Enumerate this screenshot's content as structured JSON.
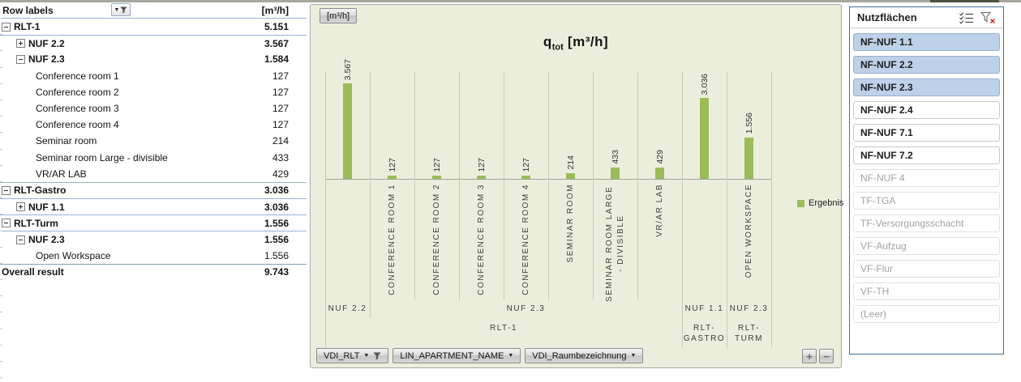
{
  "colors": {
    "bar_green": "#9bbc59",
    "chart_background": "#eceedd",
    "chart_border": "#a9a9a9",
    "table_border_blue": "#95b3d7",
    "slicer_border_blue": "#41719c",
    "slicer_selected_fill": "#bdd2e9",
    "disabled_text": "#a3a3a3"
  },
  "pivot_table": {
    "header": {
      "row_labels": "Row labels",
      "value_label": "[m³/h]"
    },
    "rows": [
      {
        "label": "RLT-1",
        "value": "5.151",
        "level": 0,
        "toggle": "minus",
        "bold": true,
        "sep": false,
        "total": false
      },
      {
        "label": "NUF 2.2",
        "value": "3.567",
        "level": 1,
        "toggle": "plus",
        "bold": true,
        "sep": true,
        "total": false
      },
      {
        "label": "NUF 2.3",
        "value": "1.584",
        "level": 1,
        "toggle": "minus",
        "bold": true,
        "sep": false,
        "total": false
      },
      {
        "label": "Conference room 1",
        "value": "127",
        "level": 2,
        "toggle": null,
        "bold": false,
        "sep": false,
        "total": false
      },
      {
        "label": "Conference room 2",
        "value": "127",
        "level": 2,
        "toggle": null,
        "bold": false,
        "sep": false,
        "total": false
      },
      {
        "label": "Conference room 3",
        "value": "127",
        "level": 2,
        "toggle": null,
        "bold": false,
        "sep": false,
        "total": false
      },
      {
        "label": "Conference room 4",
        "value": "127",
        "level": 2,
        "toggle": null,
        "bold": false,
        "sep": false,
        "total": false
      },
      {
        "label": "Seminar room",
        "value": "214",
        "level": 2,
        "toggle": null,
        "bold": false,
        "sep": false,
        "total": false
      },
      {
        "label": "Seminar room Large - divisible",
        "value": "433",
        "level": 2,
        "toggle": null,
        "bold": false,
        "sep": false,
        "total": false
      },
      {
        "label": "VR/AR LAB",
        "value": "429",
        "level": 2,
        "toggle": null,
        "bold": false,
        "sep": false,
        "total": false
      },
      {
        "label": "RLT-Gastro",
        "value": "3.036",
        "level": 0,
        "toggle": "minus",
        "bold": true,
        "sep": true,
        "total": false
      },
      {
        "label": "NUF 1.1",
        "value": "3.036",
        "level": 1,
        "toggle": "plus",
        "bold": true,
        "sep": true,
        "total": false
      },
      {
        "label": "RLT-Turm",
        "value": "1.556",
        "level": 0,
        "toggle": "minus",
        "bold": true,
        "sep": true,
        "total": false
      },
      {
        "label": "NUF 2.3",
        "value": "1.556",
        "level": 1,
        "toggle": "minus",
        "bold": true,
        "sep": true,
        "total": false
      },
      {
        "label": "Open Workspace",
        "value": "1.556",
        "level": 2,
        "toggle": null,
        "bold": false,
        "sep": false,
        "total": false
      },
      {
        "label": "Overall result",
        "value": "9.743",
        "level": 0,
        "toggle": null,
        "bold": true,
        "sep": false,
        "total": true
      }
    ]
  },
  "chart_data": {
    "type": "bar",
    "title": "q_tot [m³/h]",
    "title_parts": {
      "base": "q",
      "sub": "tot",
      "rest": " [m³/h]"
    },
    "series_name": "Ergebnis",
    "ylim": [
      0,
      4000
    ],
    "value_axis_visible": false,
    "bar_color": "#9bbc59",
    "columns": [
      {
        "room": "",
        "value": 3567,
        "label": "3.567"
      },
      {
        "room": "CONFERENCE ROOM 1",
        "value": 127,
        "label": "127"
      },
      {
        "room": "CONFERENCE ROOM 2",
        "value": 127,
        "label": "127"
      },
      {
        "room": "CONFERENCE ROOM 3",
        "value": 127,
        "label": "127"
      },
      {
        "room": "CONFERENCE ROOM 4",
        "value": 127,
        "label": "127"
      },
      {
        "room": "SEMINAR ROOM",
        "value": 214,
        "label": "214"
      },
      {
        "room": "SEMINAR ROOM LARGE - DIVISIBLE",
        "value": 433,
        "label": "433"
      },
      {
        "room": "VR/AR LAB",
        "value": 429,
        "label": "429"
      },
      {
        "room": "",
        "value": 3036,
        "label": "3.036"
      },
      {
        "room": "OPEN WORKSPACE",
        "value": 1556,
        "label": "1.556"
      }
    ],
    "nuf_groups": [
      {
        "label": "NUF 2.2",
        "from": 0,
        "to": 1
      },
      {
        "label": "NUF 2.3",
        "from": 1,
        "to": 8
      },
      {
        "label": "NUF 1.1",
        "from": 8,
        "to": 9
      },
      {
        "label": "NUF 2.3",
        "from": 9,
        "to": 10
      }
    ],
    "rlt_groups": [
      {
        "label": "RLT-1",
        "from": 0,
        "to": 8
      },
      {
        "label": "RLT-GASTRO",
        "from": 8,
        "to": 9
      },
      {
        "label": "RLT-TURM",
        "from": 9,
        "to": 10
      }
    ]
  },
  "chart": {
    "unit_button": "[m³/h]",
    "field_buttons": [
      {
        "label": "VDI_RLT",
        "filtered": true
      },
      {
        "label": "LIN_APARTMENT_NAME",
        "filtered": false
      },
      {
        "label": "VDI_Raumbezeichnung",
        "filtered": false
      }
    ],
    "zoom_buttons": {
      "expand": "+",
      "collapse": "−"
    }
  },
  "slicer": {
    "title": "Nutzflächen",
    "items": [
      {
        "label": "NF-NUF 1.1",
        "state": "selected"
      },
      {
        "label": "NF-NUF 2.2",
        "state": "selected"
      },
      {
        "label": "NF-NUF 2.3",
        "state": "selected"
      },
      {
        "label": "NF-NUF 2.4",
        "state": "unselected"
      },
      {
        "label": "NF-NUF 7.1",
        "state": "unselected"
      },
      {
        "label": "NF-NUF 7.2",
        "state": "unselected"
      },
      {
        "label": "NF-NUF 4",
        "state": "no-data"
      },
      {
        "label": "TF-TGA",
        "state": "no-data"
      },
      {
        "label": "TF-Versorgungsschacht",
        "state": "no-data"
      },
      {
        "label": "VF-Aufzug",
        "state": "no-data"
      },
      {
        "label": "VF-Flur",
        "state": "no-data"
      },
      {
        "label": "VF-TH",
        "state": "no-data"
      },
      {
        "label": "(Leer)",
        "state": "no-data"
      }
    ]
  }
}
